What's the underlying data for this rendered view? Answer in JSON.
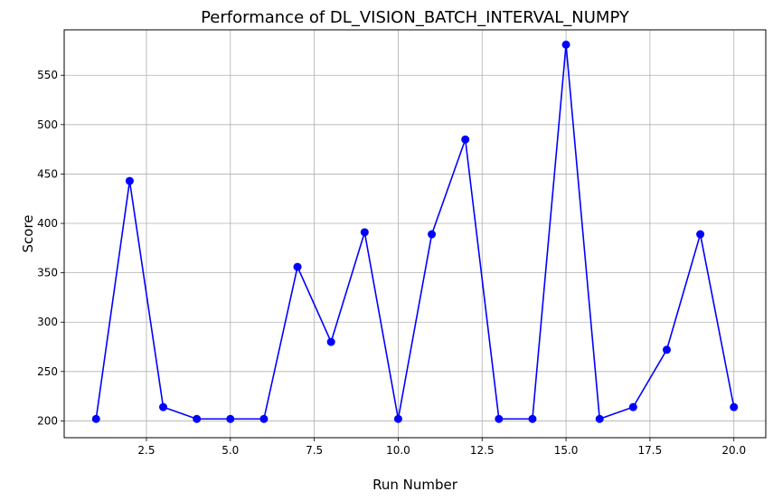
{
  "chart_data": {
    "type": "line",
    "title": "Performance of DL_VISION_BATCH_INTERVAL_NUMPY",
    "xlabel": "Run Number",
    "ylabel": "Score",
    "x": [
      1,
      2,
      3,
      4,
      5,
      6,
      7,
      8,
      9,
      10,
      11,
      12,
      13,
      14,
      15,
      16,
      17,
      18,
      19,
      20
    ],
    "series": [
      {
        "values": [
          202,
          443,
          214,
          202,
          202,
          202,
          356,
          280,
          391,
          202,
          389,
          485,
          202,
          202,
          581,
          202,
          214,
          272,
          389,
          214
        ],
        "color": "#0000ff",
        "marker": "circle"
      }
    ],
    "xlim": [
      0.05,
      20.95
    ],
    "ylim": [
      183,
      596
    ],
    "xticks": [
      2.5,
      5.0,
      7.5,
      10.0,
      12.5,
      15.0,
      17.5,
      20.0
    ],
    "xtick_labels": [
      "2.5",
      "5.0",
      "7.5",
      "10.0",
      "12.5",
      "15.0",
      "17.5",
      "20.0"
    ],
    "yticks": [
      200,
      250,
      300,
      350,
      400,
      450,
      500,
      550
    ],
    "ytick_labels": [
      "200",
      "250",
      "300",
      "350",
      "400",
      "450",
      "500",
      "550"
    ],
    "grid": true,
    "legend": "none"
  }
}
